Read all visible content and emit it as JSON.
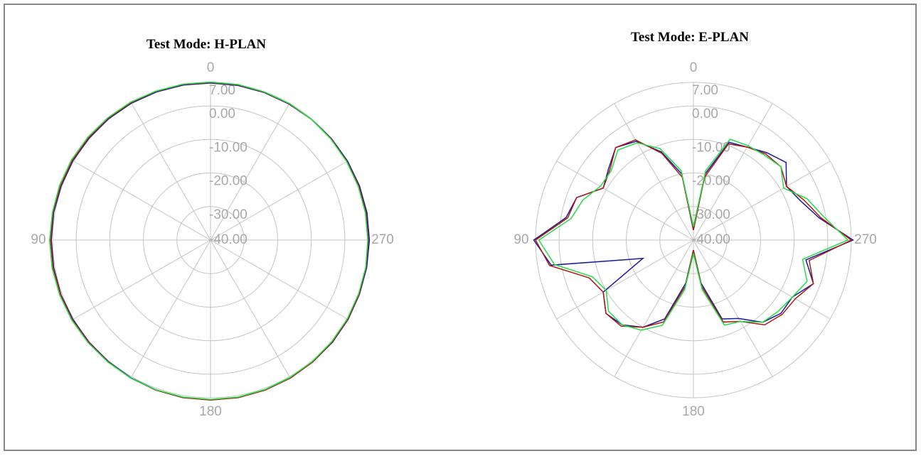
{
  "chart_data": [
    {
      "type": "polar",
      "title": "Test Mode: H-PLAN",
      "theta": [
        0,
        10,
        20,
        30,
        40,
        50,
        60,
        70,
        80,
        90,
        100,
        110,
        120,
        130,
        140,
        150,
        160,
        170,
        180,
        190,
        200,
        210,
        220,
        230,
        240,
        250,
        260,
        270,
        280,
        290,
        300,
        310,
        320,
        330,
        340,
        350
      ],
      "thetaticks": [
        0,
        90,
        180,
        270
      ],
      "thetagrid": [
        0,
        30,
        60,
        90,
        120,
        150,
        180,
        210,
        240,
        270,
        300,
        330
      ],
      "rlim": [
        -40,
        7
      ],
      "rticks": [
        {
          "value": 7,
          "label": "7.00"
        },
        {
          "value": 0,
          "label": "0.00"
        },
        {
          "value": -10,
          "label": "-10.00"
        },
        {
          "value": -20,
          "label": "-20.00"
        },
        {
          "value": -30,
          "label": "-30.00"
        },
        {
          "value": -40,
          "label": "-40.00"
        }
      ],
      "series": [
        {
          "color": "#1a1a9c",
          "values": [
            6.8,
            6.9,
            7.0,
            7.1,
            7.2,
            7.2,
            7.3,
            7.3,
            7.4,
            7.4,
            7.4,
            7.4,
            7.3,
            7.3,
            7.3,
            7.4,
            7.5,
            7.6,
            7.6,
            7.6,
            7.5,
            7.5,
            7.4,
            7.4,
            7.3,
            7.2,
            7.2,
            7.3,
            7.3,
            7.2,
            7.1,
            7.0,
            6.9,
            6.8,
            6.8,
            6.8
          ]
        },
        {
          "color": "#b01818",
          "values": [
            7.0,
            7.1,
            7.2,
            7.3,
            7.4,
            7.4,
            7.5,
            7.5,
            7.6,
            7.6,
            7.6,
            7.5,
            7.5,
            7.4,
            7.4,
            7.5,
            7.6,
            7.7,
            7.7,
            7.7,
            7.6,
            7.5,
            7.4,
            7.3,
            7.2,
            7.1,
            7.0,
            7.0,
            7.0,
            7.0,
            6.9,
            6.9,
            6.9,
            6.9,
            6.9,
            7.0
          ]
        },
        {
          "color": "#22dd44",
          "values": [
            7.1,
            7.2,
            7.3,
            7.5,
            7.6,
            7.7,
            7.8,
            7.8,
            7.8,
            7.9,
            7.9,
            7.8,
            7.7,
            7.6,
            7.5,
            7.5,
            7.5,
            7.5,
            7.5,
            7.5,
            7.4,
            7.3,
            7.2,
            7.1,
            7.0,
            6.9,
            6.9,
            6.8,
            6.8,
            6.8,
            6.8,
            6.8,
            6.9,
            7.0,
            7.0,
            7.1
          ]
        }
      ]
    },
    {
      "type": "polar",
      "title": "Test Mode: E-PLAN",
      "theta": [
        0,
        10,
        20,
        30,
        40,
        50,
        60,
        70,
        80,
        90,
        100,
        110,
        120,
        130,
        140,
        150,
        160,
        170,
        180,
        190,
        200,
        210,
        220,
        230,
        240,
        250,
        260,
        270,
        280,
        290,
        300,
        310,
        320,
        330,
        340,
        350
      ],
      "thetaticks": [
        0,
        90,
        180,
        270
      ],
      "thetagrid": [
        0,
        30,
        60,
        90,
        120,
        150,
        180,
        210,
        240,
        270,
        300,
        330
      ],
      "rlim": [
        -40,
        7
      ],
      "rticks": [
        {
          "value": 7,
          "label": "7.00"
        },
        {
          "value": 0,
          "label": "0.00"
        },
        {
          "value": -10,
          "label": "-10.00"
        },
        {
          "value": -20,
          "label": "-20.00"
        },
        {
          "value": -30,
          "label": "-30.00"
        },
        {
          "value": -40,
          "label": "-40.00"
        }
      ],
      "series": [
        {
          "color": "#1a1a9c",
          "values": [
            -37,
            -20,
            -12,
            -6,
            -4,
            -7,
            -9,
            -3,
            -1.5,
            7.5,
            3,
            -24,
            -9,
            -6,
            -7,
            -10,
            -15,
            -27,
            -37,
            -27,
            -15,
            -13,
            -8,
            -6,
            -6,
            -2,
            -6,
            7.5,
            -2,
            -6,
            -8,
            -4,
            -6,
            -8,
            -9,
            -20
          ]
        },
        {
          "color": "#b01818",
          "values": [
            -37,
            -21,
            -12.5,
            -5.5,
            -4,
            -7.5,
            -9,
            -3,
            -2,
            7,
            3.5,
            -7,
            -9,
            -6,
            -6.5,
            -10,
            -14,
            -26,
            -37,
            -26,
            -14,
            -12,
            -7,
            -5.5,
            -5,
            -2,
            -5,
            7,
            -1.5,
            -5,
            -8,
            -6,
            -6.5,
            -8,
            -9.5,
            -21
          ]
        },
        {
          "color": "#22dd44",
          "values": [
            -36,
            -19,
            -11,
            -6.5,
            -5,
            -8,
            -8,
            -5,
            -3,
            6,
            2,
            -8,
            -10,
            -7,
            -7,
            -9,
            -13,
            -25,
            -36,
            -25,
            -13,
            -12,
            -8,
            -7,
            -6,
            -4,
            -7,
            6,
            -0.5,
            -4,
            -9,
            -6,
            -7,
            -7.5,
            -8,
            -19
          ]
        }
      ]
    }
  ]
}
